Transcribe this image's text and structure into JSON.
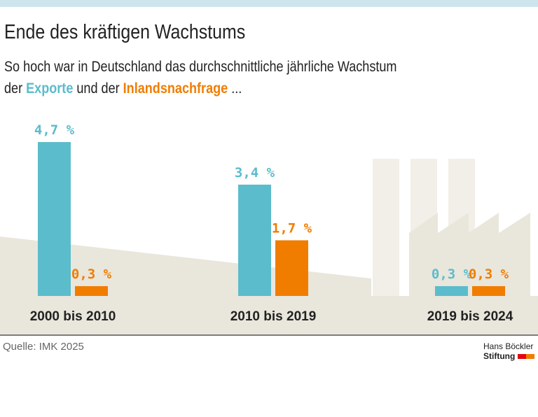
{
  "header": {
    "title": "Ende des kräftigen Wachstums",
    "subtitle_line1": "So hoch war in Deutschland das durchschnittliche jährliche Wachstum",
    "subtitle_pre": "der ",
    "subtitle_series1": "Exporte",
    "subtitle_mid": " und der ",
    "subtitle_series2": "Inlandsnachfrage",
    "subtitle_post": " ..."
  },
  "chart_data": {
    "type": "bar",
    "categories": [
      "2000 bis 2010",
      "2010 bis 2019",
      "2019 bis 2024"
    ],
    "series": [
      {
        "name": "Exporte",
        "values": [
          4.7,
          3.4,
          0.3
        ],
        "labels": [
          "4,7 %",
          "3,4 %",
          "0,3 %"
        ],
        "color": "#5bbccc"
      },
      {
        "name": "Inlandsnachfrage",
        "values": [
          0.3,
          1.7,
          0.3
        ],
        "labels": [
          "0,3 %",
          "1,7 %",
          "0,3 %"
        ],
        "color": "#f07d00"
      }
    ],
    "unit": "%",
    "grid": false
  },
  "footer": {
    "source": "Quelle: IMK 2025",
    "logo_line1": "Hans Böckler",
    "logo_line2": "Stiftung"
  }
}
